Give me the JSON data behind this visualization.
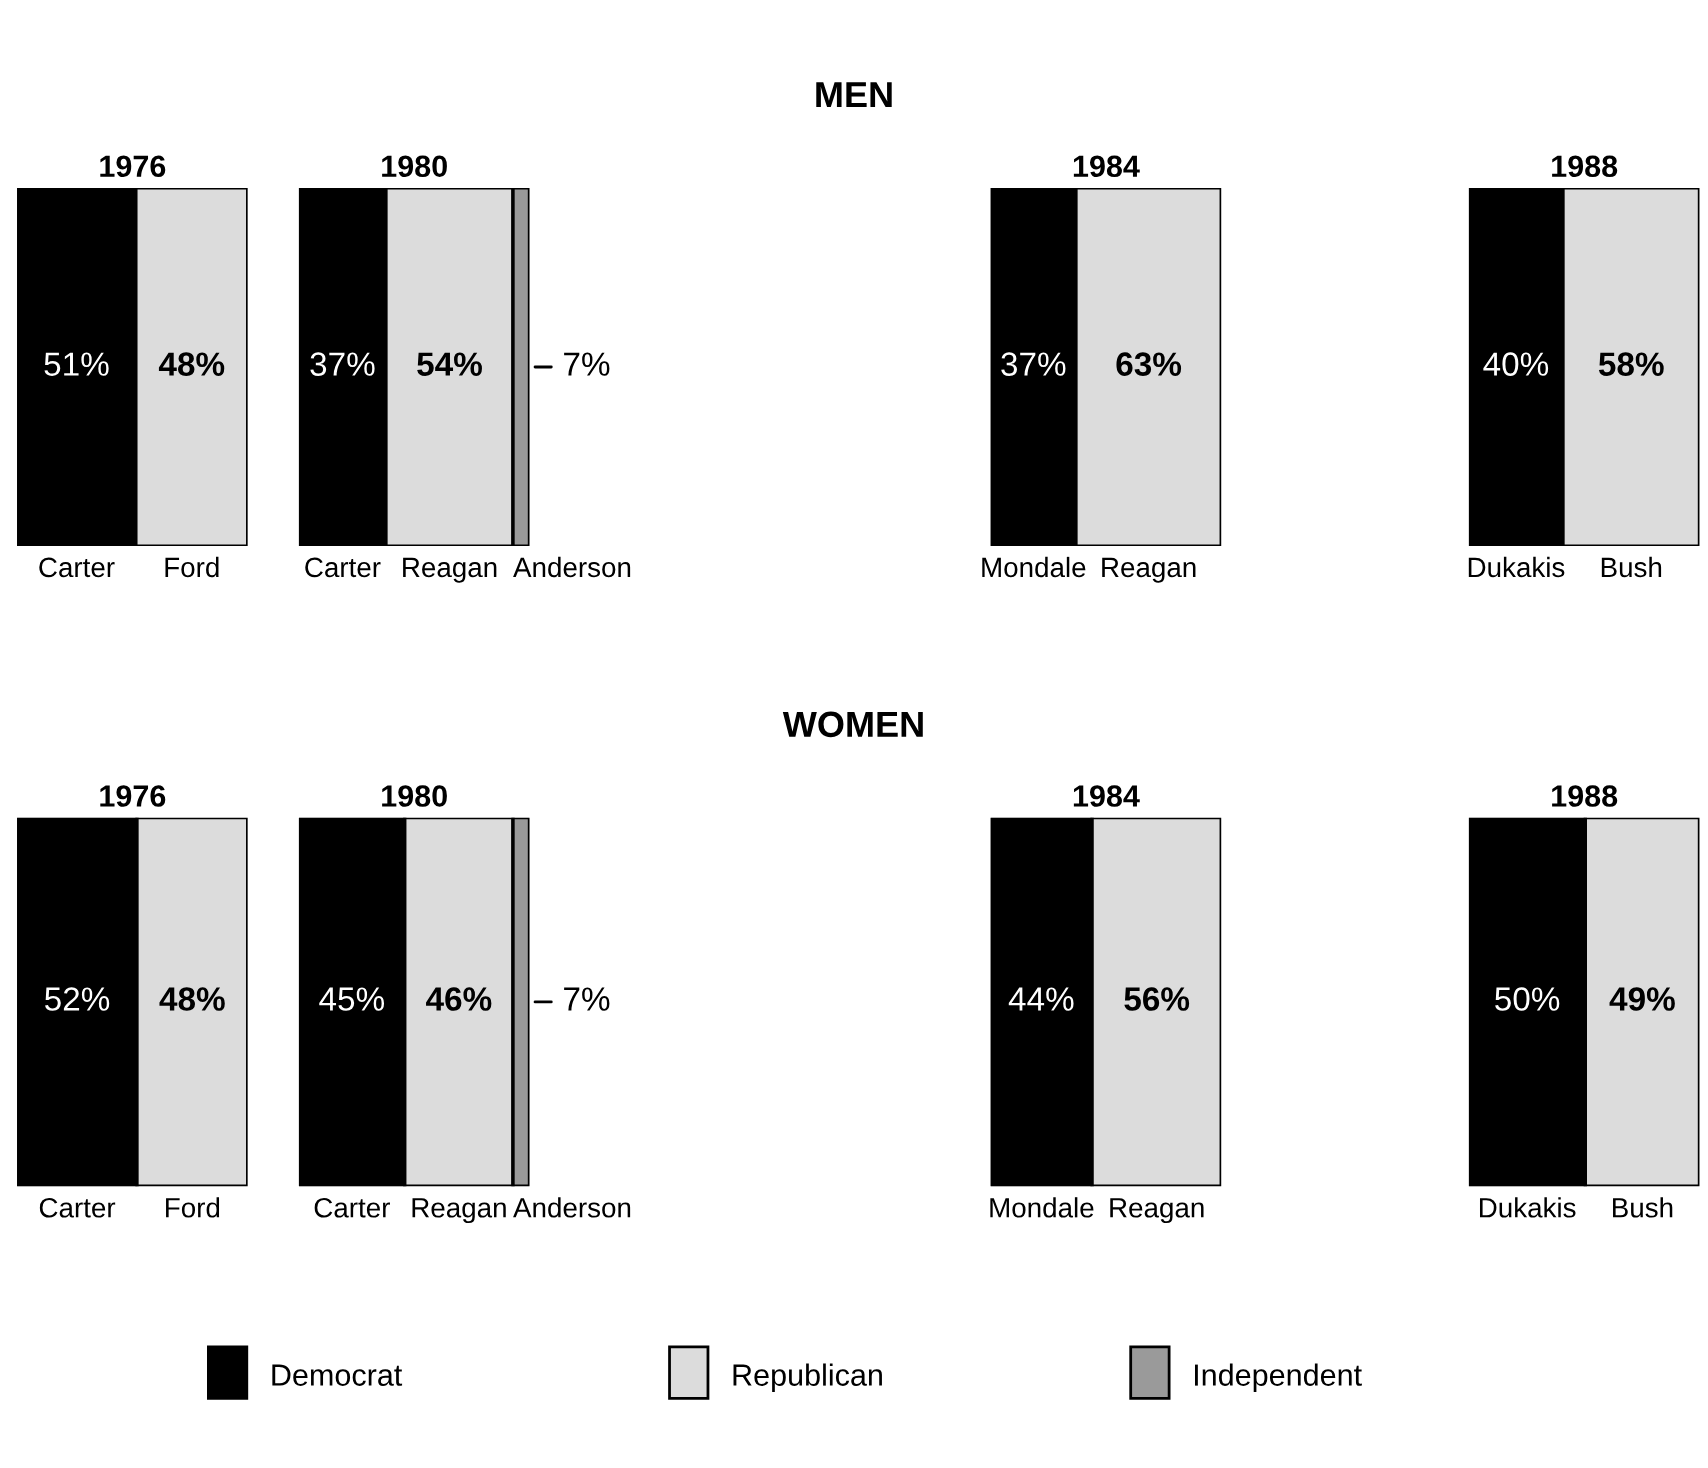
{
  "chart_data": [
    {
      "type": "bar",
      "orientation": "horizontal",
      "stacked": true,
      "title": "1976",
      "annotations": [
        "MEN"
      ],
      "categories": [
        null
      ],
      "series": [
        {
          "name": "Carter",
          "color": "#000000",
          "values": [
            51
          ],
          "value_labels": [
            "51%"
          ]
        },
        {
          "name": "Ford",
          "color": "#dcdcdc",
          "values": [
            48
          ],
          "value_labels": [
            "48%"
          ]
        }
      ]
    },
    {
      "type": "bar",
      "orientation": "horizontal",
      "stacked": true,
      "title": "1980",
      "categories": [
        null
      ],
      "series": [
        {
          "name": "Carter",
          "color": "#000000",
          "values": [
            37
          ],
          "value_labels": [
            "37%"
          ]
        },
        {
          "name": "Reagan",
          "color": "#dcdcdc",
          "values": [
            54
          ],
          "value_labels": [
            "54%"
          ]
        },
        {
          "name": "Anderson",
          "color": "#9a9a9a",
          "values": [
            7
          ],
          "value_labels": [
            "7%"
          ]
        }
      ]
    },
    {
      "type": "bar",
      "orientation": "horizontal",
      "stacked": true,
      "title": "1984",
      "categories": [
        null
      ],
      "series": [
        {
          "name": "Mondale",
          "color": "#000000",
          "values": [
            37
          ],
          "value_labels": [
            "37%"
          ]
        },
        {
          "name": "Reagan",
          "color": "#dcdcdc",
          "values": [
            63
          ],
          "value_labels": [
            "63%"
          ]
        }
      ]
    },
    {
      "type": "bar",
      "orientation": "horizontal",
      "stacked": true,
      "title": "1988",
      "categories": [
        null
      ],
      "series": [
        {
          "name": "Dukakis",
          "color": "#000000",
          "values": [
            40
          ],
          "value_labels": [
            "40%"
          ]
        },
        {
          "name": "Bush",
          "color": "#dcdcdc",
          "values": [
            58
          ],
          "value_labels": [
            "58%"
          ]
        }
      ]
    },
    {
      "type": "bar",
      "orientation": "horizontal",
      "stacked": true,
      "title": "1976",
      "annotations": [
        "WOMEN"
      ],
      "categories": [
        null
      ],
      "series": [
        {
          "name": "Carter",
          "color": "#000000",
          "values": [
            52
          ],
          "value_labels": [
            "52%"
          ]
        },
        {
          "name": "Ford",
          "color": "#dcdcdc",
          "values": [
            48
          ],
          "value_labels": [
            "48%"
          ]
        }
      ]
    },
    {
      "type": "bar",
      "orientation": "horizontal",
      "stacked": true,
      "title": "1980",
      "categories": [
        null
      ],
      "series": [
        {
          "name": "Carter",
          "color": "#000000",
          "values": [
            45
          ],
          "value_labels": [
            "45%"
          ]
        },
        {
          "name": "Reagan",
          "color": "#dcdcdc",
          "values": [
            46
          ],
          "value_labels": [
            "46%"
          ]
        },
        {
          "name": "Anderson",
          "color": "#9a9a9a",
          "values": [
            7
          ],
          "value_labels": [
            "7%"
          ]
        }
      ]
    },
    {
      "type": "bar",
      "orientation": "horizontal",
      "stacked": true,
      "title": "1984",
      "categories": [
        null
      ],
      "series": [
        {
          "name": "Mondale",
          "color": "#000000",
          "values": [
            44
          ],
          "value_labels": [
            "44%"
          ]
        },
        {
          "name": "Reagan",
          "color": "#dcdcdc",
          "values": [
            56
          ],
          "value_labels": [
            "56%"
          ]
        }
      ]
    },
    {
      "type": "bar",
      "orientation": "horizontal",
      "stacked": true,
      "title": "1988",
      "categories": [
        null
      ],
      "series": [
        {
          "name": "Dukakis",
          "color": "#000000",
          "values": [
            50
          ],
          "value_labels": [
            "50%"
          ]
        },
        {
          "name": "Bush",
          "color": "#dcdcdc",
          "values": [
            49
          ],
          "value_labels": [
            "49%"
          ]
        }
      ]
    },
    {
      "type": "other",
      "categories": [
        "Democrat",
        "Republican",
        "Independent"
      ],
      "colors": [
        "#000000",
        "#dcdcdc",
        "#9a9a9a"
      ]
    }
  ]
}
